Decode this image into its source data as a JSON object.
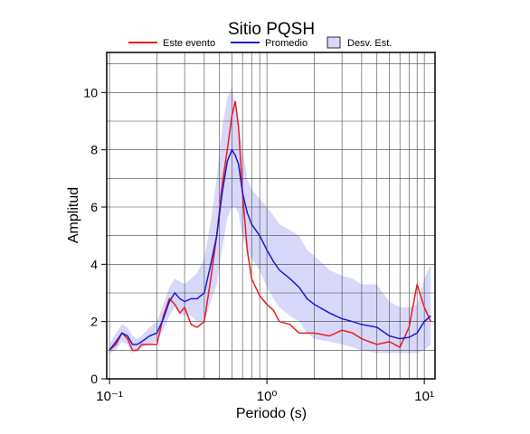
{
  "chart_data": {
    "type": "line",
    "title": "Sitio PQSH",
    "xlabel": "Periodo (s)",
    "ylabel": "Amplitud",
    "xscale": "log",
    "xlim": [
      0.096,
      11.7
    ],
    "ylim": [
      0,
      11.4
    ],
    "xticks": [
      {
        "value": 0.1,
        "label": "10⁻¹"
      },
      {
        "value": 1,
        "label": "10⁰"
      },
      {
        "value": 10,
        "label": "10¹"
      }
    ],
    "xgrid": [
      0.1,
      0.2,
      0.3,
      0.4,
      0.5,
      0.6,
      0.7,
      0.8,
      0.9,
      1,
      2,
      3,
      4,
      5,
      6,
      7,
      8,
      9,
      10
    ],
    "yticks": [
      0,
      2,
      4,
      6,
      8,
      10
    ],
    "ygrid": [
      1,
      2,
      3,
      4,
      5,
      6,
      7,
      8,
      9,
      10,
      11
    ],
    "grid": true,
    "x": [
      0.1,
      0.11,
      0.12,
      0.13,
      0.14,
      0.15,
      0.16,
      0.18,
      0.2,
      0.22,
      0.24,
      0.26,
      0.28,
      0.3,
      0.33,
      0.36,
      0.4,
      0.44,
      0.48,
      0.52,
      0.56,
      0.6,
      0.63,
      0.66,
      0.7,
      0.75,
      0.8,
      0.9,
      1.0,
      1.1,
      1.2,
      1.4,
      1.6,
      1.8,
      2.0,
      2.5,
      3.0,
      3.5,
      4.0,
      5.0,
      6.0,
      7.0,
      8.0,
      9.0,
      10.0,
      11.0
    ],
    "band": {
      "name": "Desv. Est.",
      "color": "#d8d8fa",
      "upper": [
        1.2,
        1.6,
        1.9,
        1.8,
        1.5,
        1.4,
        1.5,
        1.8,
        2.0,
        2.6,
        3.2,
        3.5,
        3.4,
        3.3,
        3.5,
        3.7,
        4.2,
        5.5,
        7.0,
        8.8,
        9.8,
        10.2,
        9.5,
        9.0,
        8.0,
        7.0,
        6.6,
        6.3,
        6.0,
        5.7,
        5.4,
        5.2,
        5.0,
        4.5,
        4.3,
        3.8,
        3.6,
        3.5,
        3.3,
        3.3,
        2.7,
        2.5,
        2.5,
        2.6,
        3.5,
        4.0
      ],
      "lower": [
        0.9,
        1.0,
        1.3,
        1.2,
        0.9,
        1.0,
        1.1,
        1.2,
        1.3,
        1.7,
        2.2,
        2.5,
        2.3,
        2.2,
        2.2,
        2.0,
        2.0,
        2.7,
        3.3,
        4.5,
        5.6,
        6.0,
        6.0,
        5.8,
        5.0,
        4.5,
        4.2,
        3.8,
        3.2,
        2.8,
        2.5,
        2.2,
        2.0,
        1.6,
        1.4,
        1.3,
        1.2,
        1.1,
        1.0,
        0.9,
        0.9,
        0.9,
        0.9,
        0.9,
        1.0,
        1.2
      ]
    },
    "series": [
      {
        "name": "Este evento",
        "color": "#ee1c1c",
        "values": [
          1.0,
          1.2,
          1.6,
          1.4,
          1.0,
          1.0,
          1.2,
          1.2,
          1.2,
          2.2,
          2.8,
          2.6,
          2.3,
          2.5,
          1.9,
          1.8,
          2.0,
          3.5,
          5.0,
          6.8,
          8.0,
          9.2,
          9.7,
          8.8,
          6.5,
          4.5,
          3.5,
          2.9,
          2.6,
          2.4,
          2.0,
          1.9,
          1.6,
          1.6,
          1.6,
          1.5,
          1.7,
          1.6,
          1.4,
          1.2,
          1.3,
          1.1,
          1.8,
          3.3,
          2.5,
          2.0
        ]
      },
      {
        "name": "Promedio",
        "color": "#1a1ad6",
        "values": [
          1.0,
          1.3,
          1.6,
          1.5,
          1.2,
          1.2,
          1.3,
          1.5,
          1.6,
          2.1,
          2.7,
          3.0,
          2.8,
          2.7,
          2.8,
          2.8,
          3.0,
          4.0,
          5.0,
          6.5,
          7.6,
          8.0,
          7.8,
          7.5,
          6.5,
          5.8,
          5.4,
          5.0,
          4.5,
          4.1,
          3.8,
          3.5,
          3.2,
          2.8,
          2.6,
          2.3,
          2.1,
          2.0,
          1.9,
          1.8,
          1.5,
          1.4,
          1.45,
          1.6,
          2.0,
          2.2
        ]
      }
    ]
  }
}
